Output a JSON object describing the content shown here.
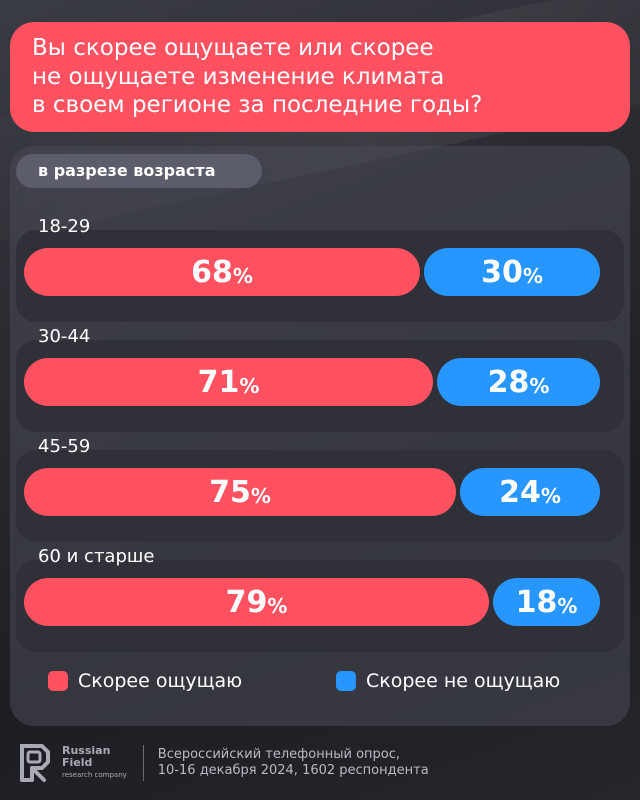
{
  "header": {
    "question_line1": "Вы скорее ощущаете или скорее",
    "question_line2": "не ощущаете изменение климата",
    "question_line3": "в своем регионе за последние годы?"
  },
  "subtitle": "в разрезе возраста",
  "colors": {
    "feel": "#ff5160",
    "not_feel": "#2896ff"
  },
  "chart_data": {
    "type": "bar",
    "orientation": "horizontal",
    "stacked": true,
    "title": "Вы скорее ощущаете или скорее не ощущаете изменение климата в своем регионе за последние годы?",
    "categories": [
      "18-29",
      "30-44",
      "45-59",
      "60 и старше"
    ],
    "series": [
      {
        "name": "Скорее ощущаю",
        "color": "#ff5160",
        "values": [
          68,
          71,
          75,
          79
        ]
      },
      {
        "name": "Скорее не ощущаю",
        "color": "#2896ff",
        "values": [
          30,
          28,
          24,
          18
        ]
      }
    ],
    "value_unit": "%",
    "legend": "bottom"
  },
  "legend": {
    "feel": "Скорее ощущаю",
    "not_feel": "Скорее не ощущаю"
  },
  "footer": {
    "logo_line1": "Russian",
    "logo_line2": "Field",
    "logo_line3": "research company",
    "note_line1": "Всероссийский телефонный опрос,",
    "note_line2": "10-16 декабря 2024, 1602 респондента"
  }
}
